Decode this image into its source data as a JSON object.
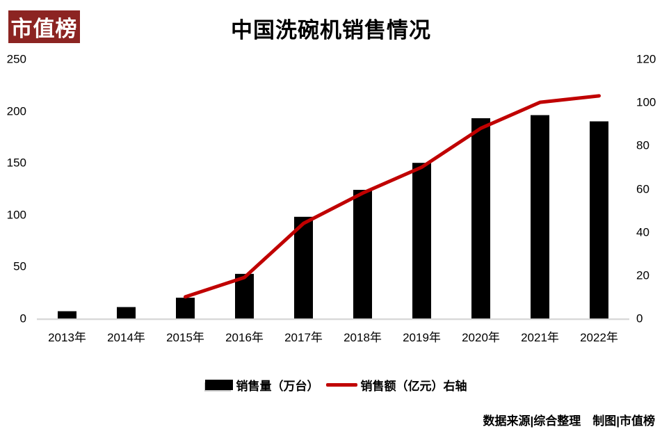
{
  "logo": {
    "text": "市值榜",
    "bg_color": "#8C2422",
    "text_color": "#FFFFFF"
  },
  "header": {
    "title": "中国洗碗机销售情况"
  },
  "legend": {
    "items": [
      {
        "label": "销售量（万台）",
        "swatch": "black-bar",
        "color": "#000000"
      },
      {
        "label": "销售额（亿元）右轴",
        "swatch": "red-line",
        "color": "#C00000"
      }
    ]
  },
  "footer": {
    "text": "数据来源|综合整理　制图|市值榜"
  },
  "colors": {
    "bar": "#000000",
    "line": "#C00000",
    "axis_line": "#D9D9D9",
    "logo_bg": "#8C2422"
  },
  "chart_data": {
    "type": "combo",
    "title": "中国洗碗机销售情况",
    "categories": [
      "2013年",
      "2014年",
      "2015年",
      "2016年",
      "2017年",
      "2018年",
      "2019年",
      "2020年",
      "2021年",
      "2022年"
    ],
    "series": [
      {
        "name": "销售量（万台）",
        "chart": "bar",
        "axis": "left",
        "color": "#000000",
        "values": [
          7,
          11,
          20,
          43,
          98,
          124,
          150,
          193,
          196,
          190
        ]
      },
      {
        "name": "销售额（亿元）右轴",
        "chart": "line",
        "axis": "right",
        "color": "#C00000",
        "values": [
          null,
          null,
          10,
          19,
          44,
          58,
          70,
          88,
          100,
          103
        ]
      }
    ],
    "left_axis": {
      "label": "销售量（万台）",
      "range": [
        0,
        250
      ],
      "ticks": [
        0,
        50,
        100,
        150,
        200,
        250
      ]
    },
    "right_axis": {
      "label": "销售额（亿元）",
      "range": [
        0,
        120
      ],
      "ticks": [
        0,
        20,
        40,
        60,
        80,
        100,
        120
      ]
    },
    "grid": false,
    "legend_position": "bottom"
  }
}
